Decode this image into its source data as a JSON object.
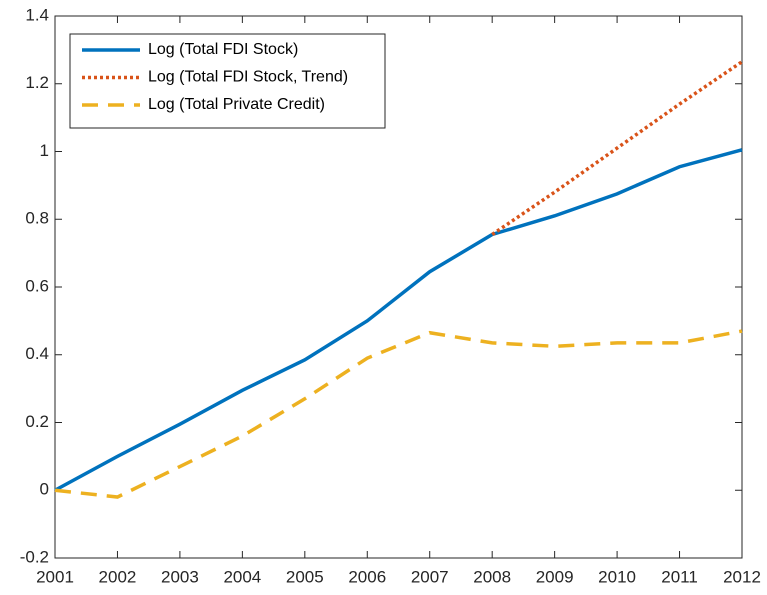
{
  "chart_data": {
    "type": "line",
    "x": [
      2001,
      2002,
      2003,
      2004,
      2005,
      2006,
      2007,
      2008,
      2009,
      2010,
      2011,
      2012
    ],
    "series": [
      {
        "name": "Log (Total FDI Stock)",
        "color": "#0072bd",
        "dash": "solid",
        "values": [
          0,
          0.1,
          0.195,
          0.295,
          0.385,
          0.5,
          0.645,
          0.755,
          0.81,
          0.875,
          0.955,
          1.005
        ]
      },
      {
        "name": "Log (Total FDI Stock, Trend)",
        "color": "#d95319",
        "dash": "dotted",
        "values": [
          null,
          null,
          null,
          null,
          null,
          null,
          null,
          0.755,
          0.88,
          1.01,
          1.14,
          1.265
        ]
      },
      {
        "name": "Log (Total Private Credit)",
        "color": "#edb120",
        "dash": "dashed",
        "values": [
          0,
          -0.02,
          0.07,
          0.16,
          0.27,
          0.39,
          0.465,
          0.435,
          0.425,
          0.435,
          0.435,
          0.47
        ]
      }
    ],
    "xlim": [
      2001,
      2012
    ],
    "xticks": [
      2001,
      2002,
      2003,
      2004,
      2005,
      2006,
      2007,
      2008,
      2009,
      2010,
      2011,
      2012
    ],
    "ylim": [
      -0.2,
      1.4
    ],
    "yticks": [
      -0.2,
      0,
      0.2,
      0.4,
      0.6,
      0.8,
      1,
      1.2,
      1.4
    ],
    "legend": "upper-left"
  }
}
